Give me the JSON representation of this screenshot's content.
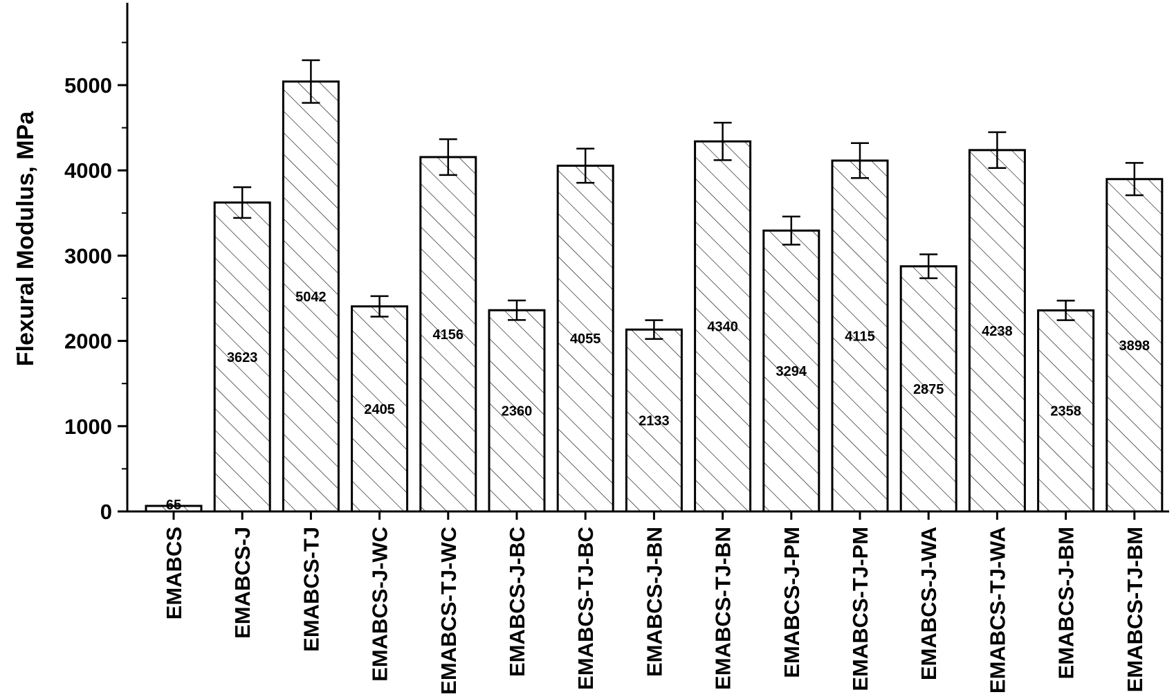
{
  "chart_data": {
    "type": "bar",
    "ylabel": "Flexural Modulus, MPa",
    "xlabel": "",
    "ylim": [
      0,
      5500
    ],
    "yticks": [
      0,
      1000,
      2000,
      3000,
      4000,
      5000
    ],
    "grid": false,
    "legend": "none",
    "bar_fill": "diagonal-hatch",
    "colors": {
      "bar_stroke": "#000000",
      "hatch": "#000000",
      "background": "#ffffff"
    },
    "categories": [
      "EMABCS",
      "EMABCS-J",
      "EMABCS-TJ",
      "EMABCS-J-WC",
      "EMABCS-TJ-WC",
      "EMABCS-J-BC",
      "EMABCS-TJ-BC",
      "EMABCS-J-BN",
      "EMABCS-TJ-BN",
      "EMABCS-J-PM",
      "EMABCS-TJ-PM",
      "EMABCS-J-WA",
      "EMABCS-TJ-WA",
      "EMABCS-J-BM",
      "EMABCS-TJ-BM"
    ],
    "values": [
      65,
      3623,
      5042,
      2405,
      4156,
      2360,
      4055,
      2133,
      4340,
      3294,
      4115,
      2875,
      4238,
      2358,
      3898
    ],
    "data_labels": [
      "65",
      "3623",
      "5042",
      "2405",
      "4156",
      "2360",
      "4055",
      "2133",
      "4340",
      "3294",
      "4115",
      "2875",
      "4238",
      "2358",
      "3898"
    ],
    "error": [
      0,
      180,
      250,
      120,
      210,
      115,
      200,
      110,
      220,
      165,
      205,
      140,
      210,
      115,
      190
    ]
  }
}
